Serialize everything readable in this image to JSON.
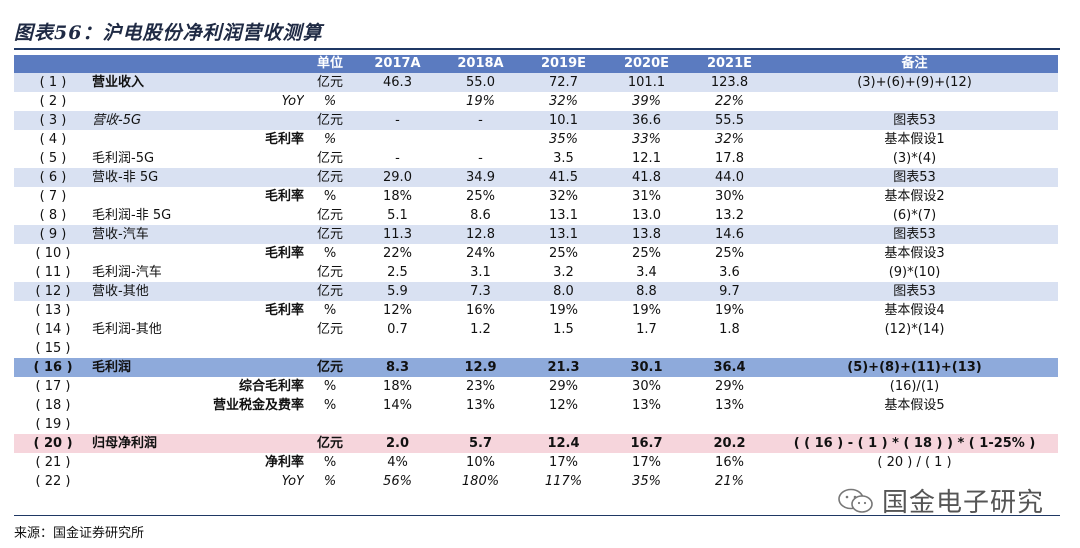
{
  "title": "图表56：沪电股份净利润营收测算",
  "source": "来源：国金证券研究所",
  "watermark": "国金电子研究",
  "header": [
    "",
    "",
    "单位",
    "2017A",
    "2018A",
    "2019E",
    "2020E",
    "2021E",
    "备注"
  ],
  "rows": [
    {
      "idx": "( 1 )",
      "label": "营业收入",
      "unit": "亿元",
      "v": [
        "46.3",
        "55.0",
        "72.7",
        "101.1",
        "123.8"
      ],
      "note": "(3)+(6)+(9)+(12)"
    },
    {
      "idx": "( 2 )",
      "label": "YoY",
      "unit": "%",
      "v": [
        "",
        "19%",
        "32%",
        "39%",
        "22%"
      ],
      "note": ""
    },
    {
      "idx": "( 3 )",
      "label": "营收-5G",
      "unit": "亿元",
      "v": [
        "-",
        "-",
        "10.1",
        "36.6",
        "55.5"
      ],
      "note": "图表53"
    },
    {
      "idx": "( 4 )",
      "label": "毛利率",
      "unit": "%",
      "v": [
        "",
        "",
        "35%",
        "33%",
        "32%"
      ],
      "note": "基本假设1"
    },
    {
      "idx": "( 5 )",
      "label": "毛利润-5G",
      "unit": "亿元",
      "v": [
        "-",
        "-",
        "3.5",
        "12.1",
        "17.8"
      ],
      "note": "(3)*(4)"
    },
    {
      "idx": "( 6 )",
      "label": "营收-非 5G",
      "unit": "亿元",
      "v": [
        "29.0",
        "34.9",
        "41.5",
        "41.8",
        "44.0"
      ],
      "note": "图表53"
    },
    {
      "idx": "( 7 )",
      "label": "毛利率",
      "unit": "%",
      "v": [
        "18%",
        "25%",
        "32%",
        "31%",
        "30%"
      ],
      "note": "基本假设2"
    },
    {
      "idx": "( 8 )",
      "label": "毛利润-非 5G",
      "unit": "亿元",
      "v": [
        "5.1",
        "8.6",
        "13.1",
        "13.0",
        "13.2"
      ],
      "note": "(6)*(7)"
    },
    {
      "idx": "( 9 )",
      "label": "营收-汽车",
      "unit": "亿元",
      "v": [
        "11.3",
        "12.8",
        "13.1",
        "13.8",
        "14.6"
      ],
      "note": "图表53"
    },
    {
      "idx": "( 10 )",
      "label": "毛利率",
      "unit": "%",
      "v": [
        "22%",
        "24%",
        "25%",
        "25%",
        "25%"
      ],
      "note": "基本假设3"
    },
    {
      "idx": "( 11 )",
      "label": "毛利润-汽车",
      "unit": "亿元",
      "v": [
        "2.5",
        "3.1",
        "3.2",
        "3.4",
        "3.6"
      ],
      "note": "(9)*(10)"
    },
    {
      "idx": "( 12 )",
      "label": "营收-其他",
      "unit": "亿元",
      "v": [
        "5.9",
        "7.3",
        "8.0",
        "8.8",
        "9.7"
      ],
      "note": "图表53"
    },
    {
      "idx": "( 13 )",
      "label": "毛利率",
      "unit": "%",
      "v": [
        "12%",
        "16%",
        "19%",
        "19%",
        "19%"
      ],
      "note": "基本假设4"
    },
    {
      "idx": "( 14 )",
      "label": "毛利润-其他",
      "unit": "亿元",
      "v": [
        "0.7",
        "1.2",
        "1.5",
        "1.7",
        "1.8"
      ],
      "note": "(12)*(14)"
    },
    {
      "idx": "( 15 )",
      "label": "",
      "unit": "",
      "v": [
        "",
        "",
        "",
        "",
        ""
      ],
      "note": ""
    },
    {
      "idx": "( 16 )",
      "label": "毛利润",
      "unit": "亿元",
      "v": [
        "8.3",
        "12.9",
        "21.3",
        "30.1",
        "36.4"
      ],
      "note": "(5)+(8)+(11)+(13)"
    },
    {
      "idx": "( 17 )",
      "label": "综合毛利率",
      "unit": "%",
      "v": [
        "18%",
        "23%",
        "29%",
        "30%",
        "29%"
      ],
      "note": "(16)/(1)"
    },
    {
      "idx": "( 18 )",
      "label": "营业税金及费率",
      "unit": "%",
      "v": [
        "14%",
        "13%",
        "12%",
        "13%",
        "13%"
      ],
      "note": "基本假设5"
    },
    {
      "idx": "( 19 )",
      "label": "",
      "unit": "",
      "v": [
        "",
        "",
        "",
        "",
        ""
      ],
      "note": ""
    },
    {
      "idx": "( 20 )",
      "label": "归母净利润",
      "unit": "亿元",
      "v": [
        "2.0",
        "5.7",
        "12.4",
        "16.7",
        "20.2"
      ],
      "note": "( ( 16 ) - ( 1 ) * ( 18 ) ) * ( 1-25% )"
    },
    {
      "idx": "( 21 )",
      "label": "净利率",
      "unit": "%",
      "v": [
        "4%",
        "10%",
        "17%",
        "17%",
        "16%"
      ],
      "note": "( 20 ) / ( 1 )"
    },
    {
      "idx": "( 22 )",
      "label": "YoY",
      "unit": "%",
      "v": [
        "56%",
        "180%",
        "117%",
        "35%",
        "21%"
      ],
      "note": ""
    }
  ]
}
